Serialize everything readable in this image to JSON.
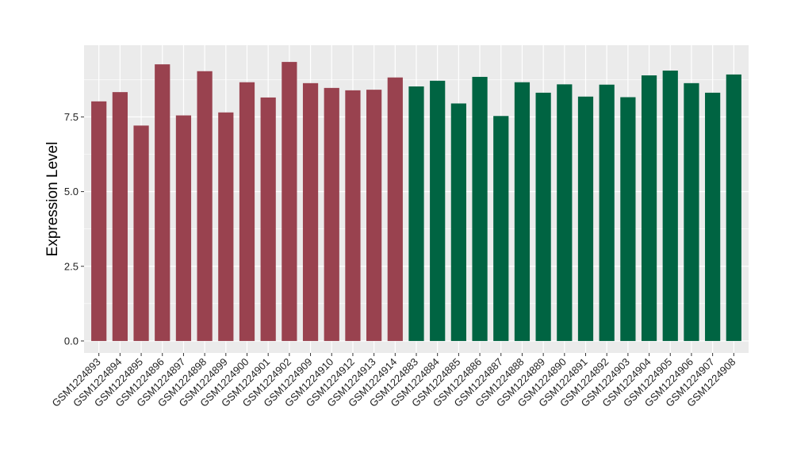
{
  "chart_data": {
    "type": "bar",
    "ylabel": "Expression Level",
    "xlabel": "",
    "ylim": [
      -0.4,
      9.9
    ],
    "yticks": [
      0.0,
      2.5,
      5.0,
      7.5
    ],
    "ytick_labels": [
      "0.0",
      "2.5",
      "5.0",
      "7.5"
    ],
    "grid": true,
    "panel_background": "#ebebeb",
    "grid_color": "#ffffff",
    "categories": [
      "GSM1224893",
      "GSM1224894",
      "GSM1224895",
      "GSM1224896",
      "GSM1224897",
      "GSM1224898",
      "GSM1224899",
      "GSM1224900",
      "GSM1224901",
      "GSM1224902",
      "GSM1224909",
      "GSM1224910",
      "GSM1224912",
      "GSM1224913",
      "GSM1224914",
      "GSM1224883",
      "GSM1224884",
      "GSM1224885",
      "GSM1224886",
      "GSM1224887",
      "GSM1224888",
      "GSM1224889",
      "GSM1224890",
      "GSM1224891",
      "GSM1224892",
      "GSM1224903",
      "GSM1224904",
      "GSM1224905",
      "GSM1224906",
      "GSM1224907",
      "GSM1224908"
    ],
    "values": [
      8.02,
      8.33,
      7.21,
      9.26,
      7.55,
      9.03,
      7.65,
      8.66,
      8.15,
      9.34,
      8.63,
      8.47,
      8.39,
      8.41,
      8.82,
      8.52,
      8.71,
      7.95,
      8.84,
      7.53,
      8.66,
      8.31,
      8.59,
      8.18,
      8.58,
      8.16,
      8.89,
      9.05,
      8.63,
      8.31,
      8.92
    ],
    "bar_colors": [
      "#99424f",
      "#99424f",
      "#99424f",
      "#99424f",
      "#99424f",
      "#99424f",
      "#99424f",
      "#99424f",
      "#99424f",
      "#99424f",
      "#99424f",
      "#99424f",
      "#99424f",
      "#99424f",
      "#99424f",
      "#006442",
      "#006442",
      "#006442",
      "#006442",
      "#006442",
      "#006442",
      "#006442",
      "#006442",
      "#006442",
      "#006442",
      "#006442",
      "#006442",
      "#006442",
      "#006442",
      "#006442",
      "#006442"
    ]
  }
}
